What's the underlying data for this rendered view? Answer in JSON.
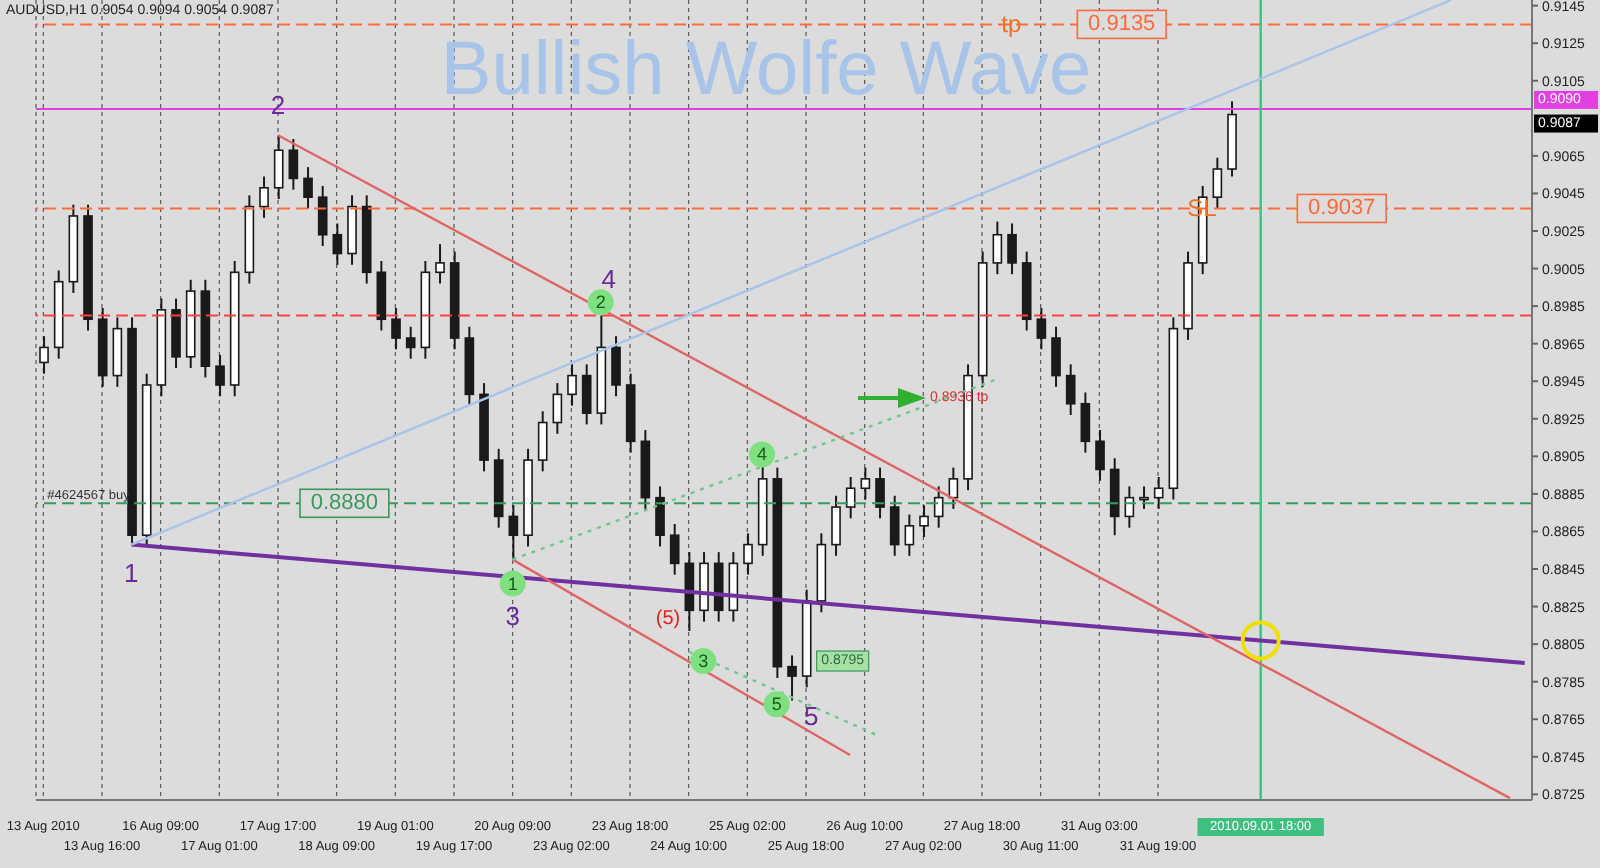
{
  "chart_data": {
    "type": "candlestick",
    "title": "Bullish Wolfe Wave",
    "categories": [
      "13 Aug 2010",
      null,
      null,
      null,
      "13 Aug 16:00",
      null,
      null,
      null,
      "16 Aug 09:00",
      null,
      null,
      null,
      "17 Aug 01:00",
      null,
      null,
      null,
      "17 Aug 17:00",
      null,
      null,
      null,
      "18 Aug 09:00",
      null,
      null,
      null,
      "19 Aug 01:00",
      null,
      null,
      null,
      "19 Aug 17:00",
      null,
      null,
      null,
      "20 Aug 09:00",
      null,
      null,
      null,
      "23 Aug 02:00",
      null,
      null,
      null,
      "23 Aug 18:00",
      null,
      null,
      null,
      "24 Aug 10:00",
      null,
      null,
      null,
      "25 Aug 02:00",
      null,
      null,
      null,
      "25 Aug 18:00",
      null,
      null,
      null,
      "26 Aug 10:00",
      null,
      null,
      null,
      "27 Aug 02:00",
      null,
      null,
      null,
      "27 Aug 18:00",
      null,
      null,
      null,
      "30 Aug 11:00",
      null,
      null,
      null,
      "31 Aug 03:00",
      null,
      null,
      null,
      "31 Aug 19:00",
      null,
      null,
      null,
      null,
      null,
      null,
      "2010.09.01 18:00",
      null,
      null,
      null,
      null,
      null,
      null,
      null,
      null,
      null,
      null,
      null,
      null,
      null,
      null,
      null,
      null,
      null,
      null
    ],
    "series": [
      {
        "type": "line",
        "color": "#7030a0",
        "values": [
          null,
          null,
          null,
          null,
          null,
          null,
          0.8858,
          null,
          null,
          null,
          null,
          null,
          null,
          null,
          null,
          null,
          null,
          null,
          null,
          null,
          null,
          null,
          null,
          null,
          null,
          null,
          null,
          null,
          null,
          null,
          null,
          null,
          null,
          null,
          null,
          null,
          null,
          null,
          null,
          null,
          null,
          null,
          null,
          null,
          null,
          null,
          null,
          null,
          null,
          null,
          null,
          null,
          null,
          null,
          null,
          null,
          null,
          null,
          null,
          null,
          null,
          null,
          null,
          null,
          null,
          null,
          null,
          null,
          null,
          null,
          null,
          null,
          null,
          null,
          null,
          null,
          null,
          null,
          null,
          null,
          null,
          null,
          null,
          null,
          null,
          null,
          null,
          null,
          null,
          null,
          null,
          null,
          null,
          null,
          null,
          null,
          null,
          null,
          null,
          null,
          null,
          0.8795
        ]
      },
      {
        "type": "line",
        "color": "#e06666",
        "values": [
          null,
          null,
          null,
          null,
          null,
          null,
          null,
          null,
          null,
          null,
          null,
          null,
          null,
          null,
          null,
          null,
          0.9076,
          null,
          null,
          null,
          null,
          null,
          null,
          null,
          null,
          null,
          null,
          null,
          null,
          null,
          null,
          null,
          null,
          null,
          null,
          null,
          null,
          null,
          null,
          null,
          null,
          null,
          null,
          null,
          null,
          null,
          null,
          null,
          null,
          null,
          null,
          null,
          null,
          null,
          null,
          null,
          null,
          null,
          null,
          null,
          null,
          null,
          null,
          null,
          null,
          null,
          null,
          null,
          null,
          null,
          null,
          null,
          null,
          null,
          null,
          null,
          null,
          null,
          null,
          null,
          null,
          null,
          null,
          null,
          null,
          null,
          null,
          null,
          null,
          null,
          null,
          null,
          null,
          null,
          null,
          null,
          null,
          null,
          null,
          null,
          0.8723,
          null
        ]
      },
      {
        "type": "line",
        "color": "#e06666",
        "values": [
          null,
          null,
          null,
          null,
          null,
          null,
          null,
          null,
          null,
          null,
          null,
          null,
          null,
          null,
          null,
          null,
          null,
          null,
          null,
          null,
          null,
          null,
          null,
          null,
          null,
          null,
          null,
          null,
          null,
          null,
          null,
          null,
          0.885,
          null,
          null,
          null,
          null,
          null,
          null,
          null,
          null,
          null,
          null,
          null,
          null,
          null,
          null,
          null,
          null,
          null,
          null,
          null,
          null,
          null,
          null,
          0.8746,
          null,
          null,
          null,
          null,
          null,
          null,
          null,
          null,
          null,
          null,
          null,
          null,
          null,
          null,
          null,
          null,
          null,
          null,
          null,
          null,
          null,
          null,
          null,
          null,
          null,
          null,
          null,
          null,
          null,
          null,
          null,
          null,
          null,
          null,
          null,
          null,
          null,
          null,
          null,
          null,
          null,
          null,
          null,
          null,
          null,
          null
        ]
      },
      {
        "type": "line",
        "color": "#a8c4e8",
        "values": [
          null,
          null,
          null,
          null,
          null,
          null,
          0.8858,
          null,
          null,
          null,
          null,
          null,
          null,
          null,
          null,
          null,
          null,
          null,
          null,
          null,
          null,
          null,
          null,
          null,
          null,
          null,
          null,
          null,
          null,
          null,
          null,
          null,
          null,
          null,
          null,
          null,
          null,
          null,
          null,
          null,
          null,
          null,
          null,
          null,
          null,
          null,
          null,
          null,
          null,
          null,
          null,
          null,
          null,
          null,
          null,
          null,
          null,
          null,
          null,
          null,
          null,
          null,
          null,
          null,
          null,
          null,
          null,
          null,
          null,
          null,
          null,
          null,
          null,
          null,
          null,
          null,
          null,
          null,
          null,
          null,
          null,
          null,
          null,
          null,
          null,
          null,
          null,
          null,
          null,
          null,
          null,
          null,
          null,
          null,
          null,
          null,
          0.9148,
          null,
          null,
          null,
          null,
          null
        ]
      },
      {
        "type": "line",
        "color": "#70c890",
        "line_style": "dotted",
        "values": [
          null,
          null,
          null,
          null,
          null,
          null,
          null,
          null,
          null,
          null,
          null,
          null,
          null,
          null,
          null,
          null,
          null,
          null,
          null,
          null,
          null,
          null,
          null,
          null,
          null,
          null,
          null,
          null,
          null,
          null,
          null,
          null,
          0.885,
          null,
          null,
          null,
          null,
          null,
          null,
          null,
          null,
          null,
          null,
          null,
          null,
          null,
          null,
          null,
          null,
          null,
          null,
          null,
          null,
          null,
          null,
          null,
          null,
          null,
          null,
          null,
          null,
          null,
          null,
          null,
          null,
          0.8946,
          null,
          null,
          null,
          null,
          null,
          null,
          null,
          null,
          null,
          null,
          null,
          null,
          null,
          null,
          null,
          null,
          null,
          null,
          null,
          null,
          null,
          null,
          null,
          null,
          null,
          null,
          null,
          null,
          null,
          null,
          null,
          null,
          null,
          null,
          null,
          null
        ]
      },
      {
        "type": "line",
        "color": "#70c890",
        "line_style": "dotted",
        "values": [
          null,
          null,
          null,
          null,
          null,
          null,
          null,
          null,
          null,
          null,
          null,
          null,
          null,
          null,
          null,
          null,
          null,
          null,
          null,
          null,
          null,
          null,
          null,
          null,
          null,
          null,
          null,
          null,
          null,
          null,
          null,
          null,
          null,
          null,
          null,
          null,
          null,
          null,
          null,
          null,
          null,
          null,
          null,
          null,
          0.8801,
          null,
          null,
          null,
          null,
          null,
          null,
          null,
          null,
          null,
          null,
          null,
          null,
          0.8756,
          null,
          null,
          null,
          null,
          null,
          null,
          null,
          null,
          null,
          null,
          null,
          null,
          null,
          null,
          null,
          null,
          null,
          null,
          null,
          null,
          null,
          null,
          null,
          null,
          null,
          null,
          null,
          null,
          null,
          null,
          null,
          null,
          null,
          null,
          null,
          null,
          null,
          null,
          null,
          null,
          null,
          null,
          null,
          null
        ]
      }
    ],
    "color": "#1a1a1a",
    "ohlc": [
      [
        0.8955,
        0.8969,
        0.8949,
        0.8963
      ],
      [
        0.8963,
        0.9004,
        0.8957,
        0.8998
      ],
      [
        0.8998,
        0.9039,
        0.8992,
        0.9033
      ],
      [
        0.9033,
        0.9039,
        0.8972,
        0.8978
      ],
      [
        0.8978,
        0.8984,
        0.8942,
        0.8948
      ],
      [
        0.8948,
        0.8979,
        0.8942,
        0.8973
      ],
      [
        0.8973,
        0.8979,
        0.8858,
        0.8863
      ],
      [
        0.8863,
        0.8949,
        0.8857,
        0.8943
      ],
      [
        0.8943,
        0.8989,
        0.8937,
        0.8983
      ],
      [
        0.8983,
        0.8989,
        0.8952,
        0.8958
      ],
      [
        0.8958,
        0.8999,
        0.8952,
        0.8993
      ],
      [
        0.8993,
        0.8999,
        0.8947,
        0.8953
      ],
      [
        0.8953,
        0.8959,
        0.8937,
        0.8943
      ],
      [
        0.8943,
        0.9009,
        0.8937,
        0.9003
      ],
      [
        0.9003,
        0.9044,
        0.8997,
        0.9038
      ],
      [
        0.9038,
        0.9054,
        0.9032,
        0.9048
      ],
      [
        0.9048,
        0.9076,
        0.9042,
        0.9068
      ],
      [
        0.9068,
        0.9074,
        0.9047,
        0.9053
      ],
      [
        0.9053,
        0.9059,
        0.9037,
        0.9043
      ],
      [
        0.9043,
        0.9049,
        0.9017,
        0.9023
      ],
      [
        0.9023,
        0.9029,
        0.9007,
        0.9013
      ],
      [
        0.9013,
        0.9044,
        0.9007,
        0.9038
      ],
      [
        0.9038,
        0.9044,
        0.8997,
        0.9003
      ],
      [
        0.9003,
        0.9009,
        0.8972,
        0.8978
      ],
      [
        0.8978,
        0.8984,
        0.8962,
        0.8968
      ],
      [
        0.8968,
        0.8974,
        0.8957,
        0.8963
      ],
      [
        0.8963,
        0.9009,
        0.8957,
        0.9003
      ],
      [
        0.9003,
        0.9018,
        0.8997,
        0.9008
      ],
      [
        0.9008,
        0.9014,
        0.8962,
        0.8968
      ],
      [
        0.8968,
        0.8974,
        0.8932,
        0.8938
      ],
      [
        0.8938,
        0.8944,
        0.8897,
        0.8903
      ],
      [
        0.8903,
        0.8909,
        0.8867,
        0.8873
      ],
      [
        0.8873,
        0.8879,
        0.885,
        0.8863
      ],
      [
        0.8863,
        0.8909,
        0.8857,
        0.8903
      ],
      [
        0.8903,
        0.8929,
        0.8897,
        0.8923
      ],
      [
        0.8923,
        0.8944,
        0.8917,
        0.8938
      ],
      [
        0.8938,
        0.8954,
        0.8932,
        0.8948
      ],
      [
        0.8948,
        0.8954,
        0.8922,
        0.8928
      ],
      [
        0.8928,
        0.898,
        0.8922,
        0.8963
      ],
      [
        0.8963,
        0.8969,
        0.8937,
        0.8943
      ],
      [
        0.8943,
        0.8949,
        0.8907,
        0.8913
      ],
      [
        0.8913,
        0.8919,
        0.8877,
        0.8883
      ],
      [
        0.8883,
        0.8889,
        0.8857,
        0.8863
      ],
      [
        0.8863,
        0.8869,
        0.8842,
        0.8848
      ],
      [
        0.8848,
        0.8854,
        0.8812,
        0.8823
      ],
      [
        0.8823,
        0.8854,
        0.8817,
        0.8848
      ],
      [
        0.8848,
        0.8854,
        0.8817,
        0.8823
      ],
      [
        0.8823,
        0.8854,
        0.8817,
        0.8848
      ],
      [
        0.8848,
        0.8864,
        0.8842,
        0.8858
      ],
      [
        0.8858,
        0.89,
        0.8852,
        0.8893
      ],
      [
        0.8893,
        0.8899,
        0.8787,
        0.8793
      ],
      [
        0.8793,
        0.8799,
        0.8775,
        0.8788
      ],
      [
        0.8788,
        0.8834,
        0.8782,
        0.8828
      ],
      [
        0.8828,
        0.8864,
        0.8822,
        0.8858
      ],
      [
        0.8858,
        0.8884,
        0.8852,
        0.8878
      ],
      [
        0.8878,
        0.8894,
        0.8872,
        0.8888
      ],
      [
        0.8888,
        0.8899,
        0.8882,
        0.8893
      ],
      [
        0.8893,
        0.8899,
        0.8872,
        0.8878
      ],
      [
        0.8878,
        0.8884,
        0.8852,
        0.8858
      ],
      [
        0.8858,
        0.8874,
        0.8852,
        0.8868
      ],
      [
        0.8868,
        0.8879,
        0.8862,
        0.8873
      ],
      [
        0.8873,
        0.8889,
        0.8867,
        0.8883
      ],
      [
        0.8883,
        0.8899,
        0.8877,
        0.8893
      ],
      [
        0.8893,
        0.8954,
        0.8887,
        0.8948
      ],
      [
        0.8948,
        0.9014,
        0.8942,
        0.9008
      ],
      [
        0.9008,
        0.903,
        0.9002,
        0.9023
      ],
      [
        0.9023,
        0.9029,
        0.9002,
        0.9008
      ],
      [
        0.9008,
        0.9014,
        0.8972,
        0.8978
      ],
      [
        0.8978,
        0.8984,
        0.8962,
        0.8968
      ],
      [
        0.8968,
        0.8974,
        0.8942,
        0.8948
      ],
      [
        0.8948,
        0.8954,
        0.8927,
        0.8933
      ],
      [
        0.8933,
        0.8939,
        0.8907,
        0.8913
      ],
      [
        0.8913,
        0.8919,
        0.8892,
        0.8898
      ],
      [
        0.8898,
        0.8904,
        0.8863,
        0.8873
      ],
      [
        0.8873,
        0.8889,
        0.8867,
        0.8883
      ],
      [
        0.8883,
        0.8889,
        0.8877,
        0.8883
      ],
      [
        0.8883,
        0.8894,
        0.8877,
        0.8888
      ],
      [
        0.8888,
        0.8979,
        0.8882,
        0.8973
      ],
      [
        0.8973,
        0.9014,
        0.8967,
        0.9008
      ],
      [
        0.9008,
        0.9049,
        0.9002,
        0.9043
      ],
      [
        0.9043,
        0.9064,
        0.9037,
        0.9058
      ],
      [
        0.9058,
        0.9094,
        0.9054,
        0.9087
      ],
      null,
      null,
      null,
      null,
      null,
      null,
      null,
      null,
      null,
      null,
      null,
      null,
      null,
      null,
      null,
      null,
      null,
      null,
      null,
      null
    ],
    "ylim": [
      0.8722,
      0.9148
    ],
    "yticks": [
      0.8725,
      0.8745,
      0.8765,
      0.8785,
      0.8805,
      0.8825,
      0.8845,
      0.8865,
      0.8885,
      0.8905,
      0.8925,
      0.8945,
      0.8965,
      0.8985,
      0.9005,
      0.9025,
      0.9045,
      0.9065,
      0.9105,
      0.9125,
      0.9145
    ],
    "grid": "x",
    "ref_lines": [
      {
        "axis": "y",
        "value": 0.9135,
        "label": "0.9135",
        "color": "#ff6a3d",
        "line_style": "dashed"
      },
      {
        "axis": "y",
        "value": 0.909,
        "label": "0.9090",
        "color": "#e040e0"
      },
      {
        "axis": "y",
        "value": 0.9037,
        "label": "0.9037",
        "color": "#ff6a3d",
        "line_style": "dashed"
      },
      {
        "axis": "y",
        "value": 0.898,
        "color": "#ff4040",
        "line_style": "dashed"
      },
      {
        "axis": "y",
        "value": 0.888,
        "label": "0.8880",
        "color": "#3a9a5a",
        "line_style": "dashed"
      },
      {
        "axis": "x",
        "value": "2010.09.01 18:00",
        "color": "#40c080"
      }
    ],
    "annotations": [
      "AUDUSD,H1 0.9054 0.9094 0.9054 0.9087",
      "1",
      {
        "text": "2",
        "y": 0.9092
      },
      "3",
      {
        "text": "4",
        "y": 0.898
      },
      "5",
      "1",
      {
        "text": "2",
        "y": 0.8987
      },
      {
        "text": "3",
        "y": 0.8796
      },
      {
        "text": "4",
        "y": 0.8906
      },
      {
        "text": "5",
        "y": 0.8773
      },
      "(5)",
      {
        "text": "#4624567 buy",
        "y": 0.8884
      },
      {
        "text": "0.8936 tp",
        "y": 0.8936
      },
      {
        "text": "0.8795",
        "y": 0.8796
      },
      {
        "text": "tp",
        "y": 0.9135
      },
      {
        "text": "SL",
        "y": 0.9037
      },
      "0.9087"
    ]
  }
}
